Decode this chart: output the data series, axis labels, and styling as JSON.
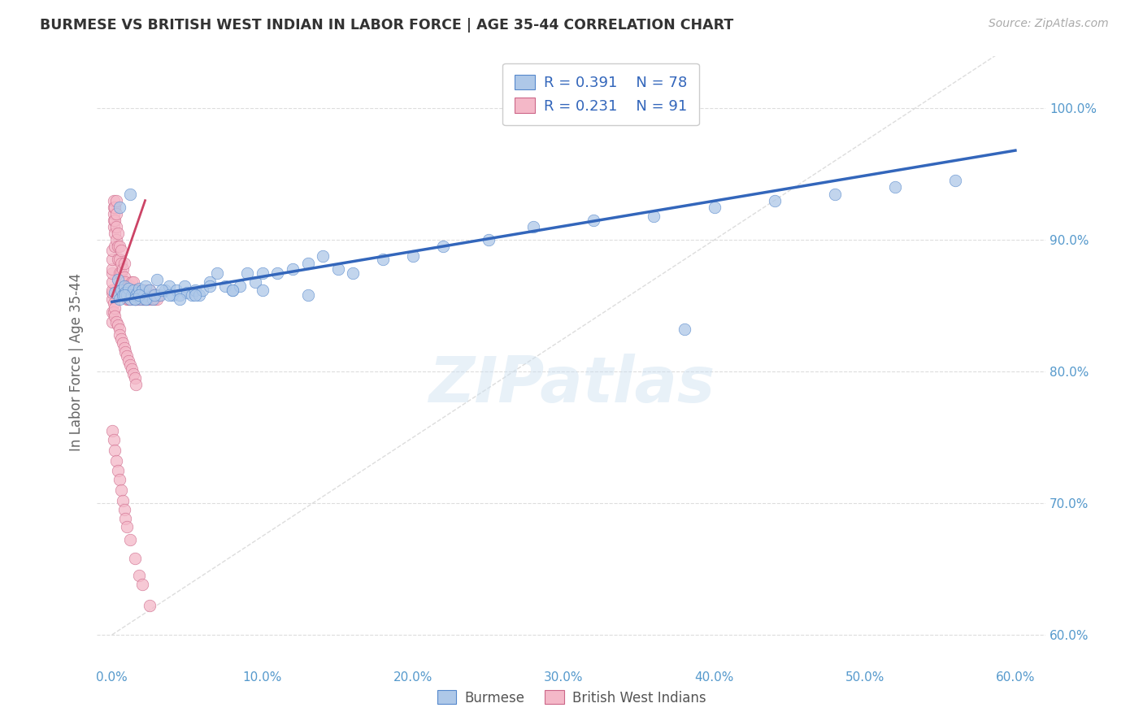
{
  "title": "BURMESE VS BRITISH WEST INDIAN IN LABOR FORCE | AGE 35-44 CORRELATION CHART",
  "source": "Source: ZipAtlas.com",
  "ylabel": "In Labor Force | Age 35-44",
  "x_ticks": [
    0.0,
    0.1,
    0.2,
    0.3,
    0.4,
    0.5,
    0.6
  ],
  "x_tick_labels": [
    "0.0%",
    "10.0%",
    "20.0%",
    "30.0%",
    "40.0%",
    "50.0%",
    "60.0%"
  ],
  "y_ticks": [
    0.6,
    0.7,
    0.8,
    0.9,
    1.0
  ],
  "y_tick_labels": [
    "60.0%",
    "70.0%",
    "80.0%",
    "90.0%",
    "100.0%"
  ],
  "xlim": [
    -0.01,
    0.62
  ],
  "ylim": [
    0.575,
    1.04
  ],
  "legend_R1": "R = 0.391",
  "legend_N1": "N = 78",
  "legend_R2": "R = 0.231",
  "legend_N2": "N = 91",
  "color_blue": "#aec8e8",
  "color_pink": "#f4b8c8",
  "color_blue_edge": "#5588cc",
  "color_pink_edge": "#cc6688",
  "color_blue_line": "#3366bb",
  "color_pink_line": "#cc4466",
  "color_diag_line": "#dddddd",
  "color_grid": "#dddddd",
  "color_title": "#333333",
  "color_source": "#aaaaaa",
  "color_ylabel": "#666666",
  "color_tick": "#5599cc",
  "burmese_x": [
    0.002,
    0.004,
    0.005,
    0.006,
    0.007,
    0.008,
    0.009,
    0.01,
    0.011,
    0.012,
    0.013,
    0.014,
    0.015,
    0.016,
    0.017,
    0.018,
    0.019,
    0.02,
    0.021,
    0.022,
    0.023,
    0.025,
    0.027,
    0.03,
    0.032,
    0.035,
    0.038,
    0.04,
    0.043,
    0.045,
    0.048,
    0.05,
    0.053,
    0.055,
    0.058,
    0.06,
    0.065,
    0.07,
    0.075,
    0.08,
    0.085,
    0.09,
    0.095,
    0.1,
    0.11,
    0.12,
    0.13,
    0.14,
    0.15,
    0.16,
    0.18,
    0.2,
    0.22,
    0.25,
    0.28,
    0.32,
    0.36,
    0.4,
    0.44,
    0.48,
    0.52,
    0.56,
    0.005,
    0.008,
    0.012,
    0.015,
    0.018,
    0.022,
    0.028,
    0.033,
    0.038,
    0.045,
    0.055,
    0.065,
    0.08,
    0.1,
    0.13,
    0.38
  ],
  "burmese_y": [
    0.86,
    0.87,
    0.855,
    0.862,
    0.858,
    0.865,
    0.86,
    0.858,
    0.863,
    0.855,
    0.858,
    0.862,
    0.855,
    0.858,
    0.86,
    0.863,
    0.855,
    0.862,
    0.858,
    0.865,
    0.855,
    0.862,
    0.855,
    0.87,
    0.858,
    0.862,
    0.865,
    0.858,
    0.862,
    0.858,
    0.865,
    0.86,
    0.858,
    0.862,
    0.858,
    0.862,
    0.868,
    0.875,
    0.865,
    0.862,
    0.865,
    0.875,
    0.868,
    0.862,
    0.875,
    0.878,
    0.882,
    0.888,
    0.878,
    0.875,
    0.885,
    0.888,
    0.895,
    0.9,
    0.91,
    0.915,
    0.918,
    0.925,
    0.93,
    0.935,
    0.94,
    0.945,
    0.925,
    0.858,
    0.935,
    0.855,
    0.858,
    0.855,
    0.858,
    0.862,
    0.858,
    0.855,
    0.858,
    0.865,
    0.862,
    0.875,
    0.858,
    0.832
  ],
  "bwi_x": [
    0.0,
    0.0,
    0.0,
    0.0,
    0.0,
    0.0,
    0.0,
    0.0,
    0.001,
    0.001,
    0.001,
    0.001,
    0.001,
    0.002,
    0.002,
    0.002,
    0.002,
    0.003,
    0.003,
    0.003,
    0.003,
    0.004,
    0.004,
    0.004,
    0.005,
    0.005,
    0.005,
    0.006,
    0.006,
    0.006,
    0.007,
    0.007,
    0.008,
    0.008,
    0.008,
    0.009,
    0.009,
    0.01,
    0.01,
    0.011,
    0.011,
    0.012,
    0.012,
    0.013,
    0.013,
    0.014,
    0.014,
    0.015,
    0.015,
    0.016,
    0.016,
    0.017,
    0.018,
    0.018,
    0.019,
    0.02,
    0.02,
    0.021,
    0.022,
    0.022,
    0.023,
    0.024,
    0.025,
    0.025,
    0.026,
    0.027,
    0.028,
    0.029,
    0.03,
    0.031,
    0.0,
    0.0,
    0.001,
    0.001,
    0.002,
    0.002,
    0.003,
    0.004,
    0.005,
    0.005,
    0.006,
    0.007,
    0.008,
    0.009,
    0.01,
    0.011,
    0.012,
    0.013,
    0.014,
    0.015,
    0.016
  ],
  "bwi_y": [
    0.855,
    0.86,
    0.862,
    0.868,
    0.875,
    0.878,
    0.885,
    0.892,
    0.91,
    0.915,
    0.92,
    0.925,
    0.93,
    0.895,
    0.905,
    0.915,
    0.925,
    0.9,
    0.91,
    0.92,
    0.93,
    0.885,
    0.895,
    0.905,
    0.875,
    0.885,
    0.895,
    0.875,
    0.882,
    0.892,
    0.868,
    0.878,
    0.862,
    0.872,
    0.882,
    0.858,
    0.868,
    0.855,
    0.865,
    0.855,
    0.865,
    0.855,
    0.865,
    0.858,
    0.868,
    0.858,
    0.868,
    0.855,
    0.862,
    0.855,
    0.862,
    0.858,
    0.855,
    0.862,
    0.858,
    0.855,
    0.862,
    0.855,
    0.855,
    0.862,
    0.858,
    0.855,
    0.858,
    0.862,
    0.855,
    0.858,
    0.855,
    0.858,
    0.855,
    0.858,
    0.845,
    0.838,
    0.852,
    0.845,
    0.848,
    0.842,
    0.838,
    0.835,
    0.832,
    0.828,
    0.825,
    0.822,
    0.818,
    0.815,
    0.812,
    0.808,
    0.805,
    0.802,
    0.798,
    0.795,
    0.79
  ],
  "bwi_low_x": [
    0.0,
    0.001,
    0.002,
    0.003,
    0.004,
    0.005,
    0.006,
    0.007,
    0.008,
    0.009,
    0.01,
    0.012,
    0.015,
    0.018,
    0.02,
    0.025
  ],
  "bwi_low_y": [
    0.755,
    0.748,
    0.74,
    0.732,
    0.725,
    0.718,
    0.71,
    0.702,
    0.695,
    0.688,
    0.682,
    0.672,
    0.658,
    0.645,
    0.638,
    0.622
  ]
}
